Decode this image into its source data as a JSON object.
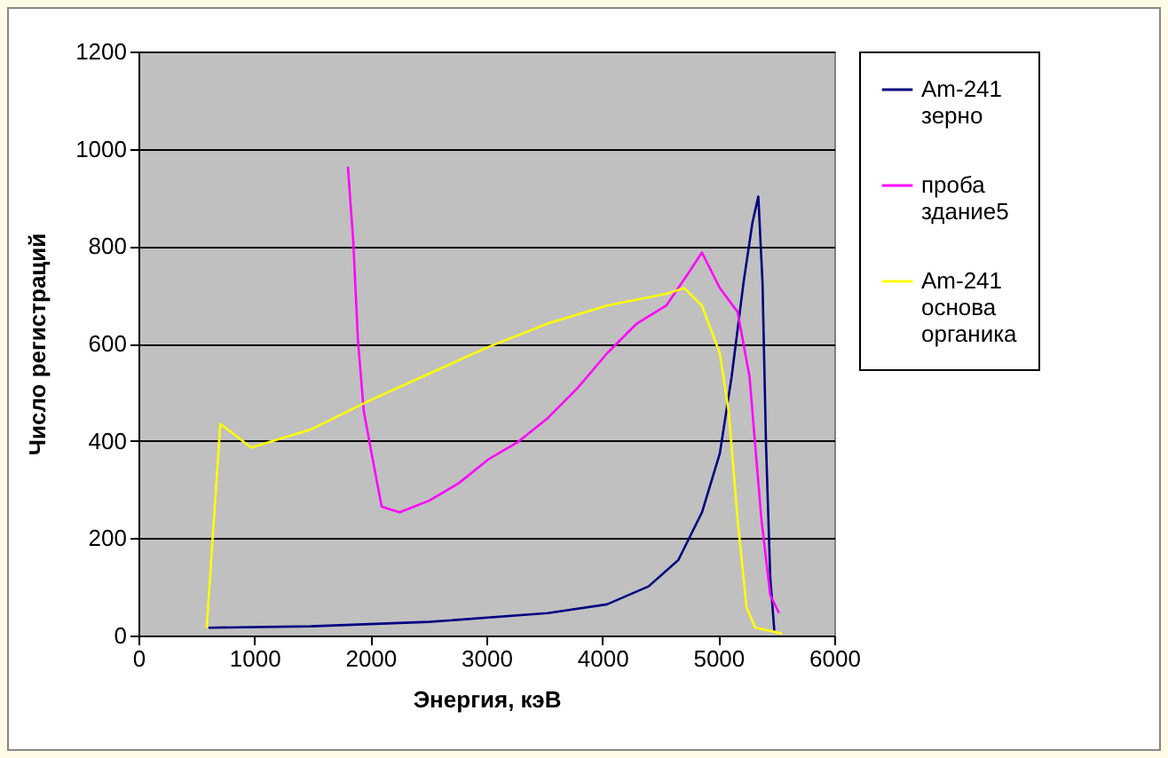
{
  "chart_data": {
    "type": "line",
    "xlabel": "Энергия, кэВ",
    "ylabel": "Число регистраций",
    "xlim": [
      0,
      6000
    ],
    "xticks": [
      0,
      1000,
      2000,
      3000,
      4000,
      5000,
      6000
    ],
    "ylim": [
      0,
      1200
    ],
    "yticks": [
      0,
      200,
      400,
      600,
      800,
      1000,
      1200
    ],
    "grid": "y",
    "legend": "right",
    "marker": "none",
    "line_style": "solid",
    "series": [
      {
        "name": "Am-241 зерно",
        "color": "#000080",
        "x": [
          603,
          1483,
          2506,
          3530,
          4041,
          4399,
          4655,
          4859,
          5013,
          5115,
          5218,
          5294,
          5345,
          5381,
          5412,
          5448,
          5483
        ],
        "values": [
          16,
          19,
          28,
          46,
          64,
          101,
          155,
          253,
          374,
          532,
          726,
          848,
          902,
          726,
          386,
          119,
          10
        ]
      },
      {
        "name": "проба здание5",
        "color": "#ff00ff",
        "x": [
          1806,
          1852,
          1893,
          1944,
          2020,
          2097,
          2251,
          2506,
          2762,
          3018,
          3274,
          3530,
          3785,
          4041,
          4297,
          4552,
          4757,
          4859,
          5013,
          5166,
          5269,
          5371,
          5448,
          5524
        ],
        "values": [
          963,
          811,
          605,
          459,
          362,
          265,
          253,
          277,
          313,
          362,
          398,
          447,
          508,
          580,
          641,
          678,
          750,
          787,
          714,
          665,
          532,
          240,
          83,
          46
        ]
      },
      {
        "name": "Am-241 основа органика",
        "color": "#ffff00",
        "x": [
          588,
          706,
          972,
          1483,
          1995,
          2506,
          3018,
          3530,
          4041,
          4552,
          4706,
          4859,
          5013,
          5090,
          5166,
          5243,
          5320,
          5550
        ],
        "values": [
          15,
          435,
          386,
          423,
          483,
          538,
          593,
          641,
          678,
          702,
          714,
          678,
          580,
          459,
          240,
          58,
          16,
          4
        ]
      }
    ]
  }
}
